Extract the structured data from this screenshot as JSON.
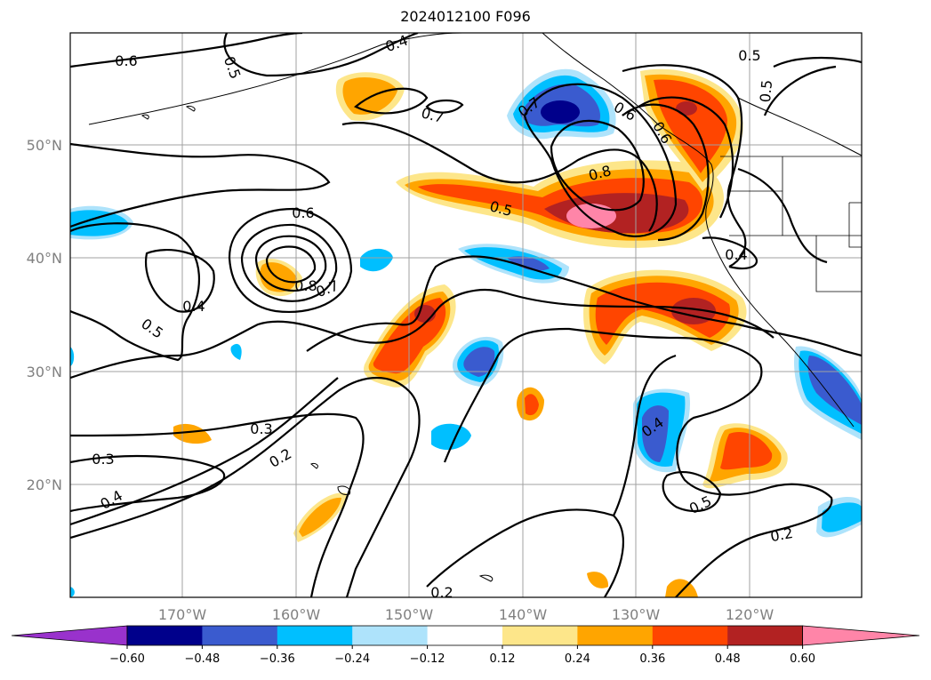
{
  "title": "2024012100 F096",
  "lat_labels": [
    "50°N",
    "40°N",
    "30°N",
    "20°N"
  ],
  "lon_labels": [
    "170°W",
    "160°W",
    "150°W",
    "140°W",
    "130°W",
    "120°W"
  ],
  "colorbar": {
    "ticks": [
      "−0.60",
      "−0.48",
      "−0.36",
      "−0.24",
      "−0.12",
      "0.12",
      "0.24",
      "0.36",
      "0.48",
      "0.60"
    ],
    "colors": [
      "#9932cc",
      "#00008b",
      "#3a5bcf",
      "#00bfff",
      "#aee3fb",
      "#ffffff",
      "#fde68a",
      "#ffa500",
      "#ff4500",
      "#b22222",
      "#ff85a8"
    ]
  },
  "contour_labels": [
    "0.6",
    "0.5",
    "0.4",
    "0.7",
    "0.6",
    "0.5",
    "0.5",
    "0.7",
    "0.6",
    "0.8",
    "0.5",
    "0.6",
    "0.8",
    "0.7",
    "0.4",
    "0.4",
    "0.5",
    "0.3",
    "0.3",
    "0.2",
    "0.4",
    "0.4",
    "0.5",
    "0.2",
    "0.2"
  ]
}
